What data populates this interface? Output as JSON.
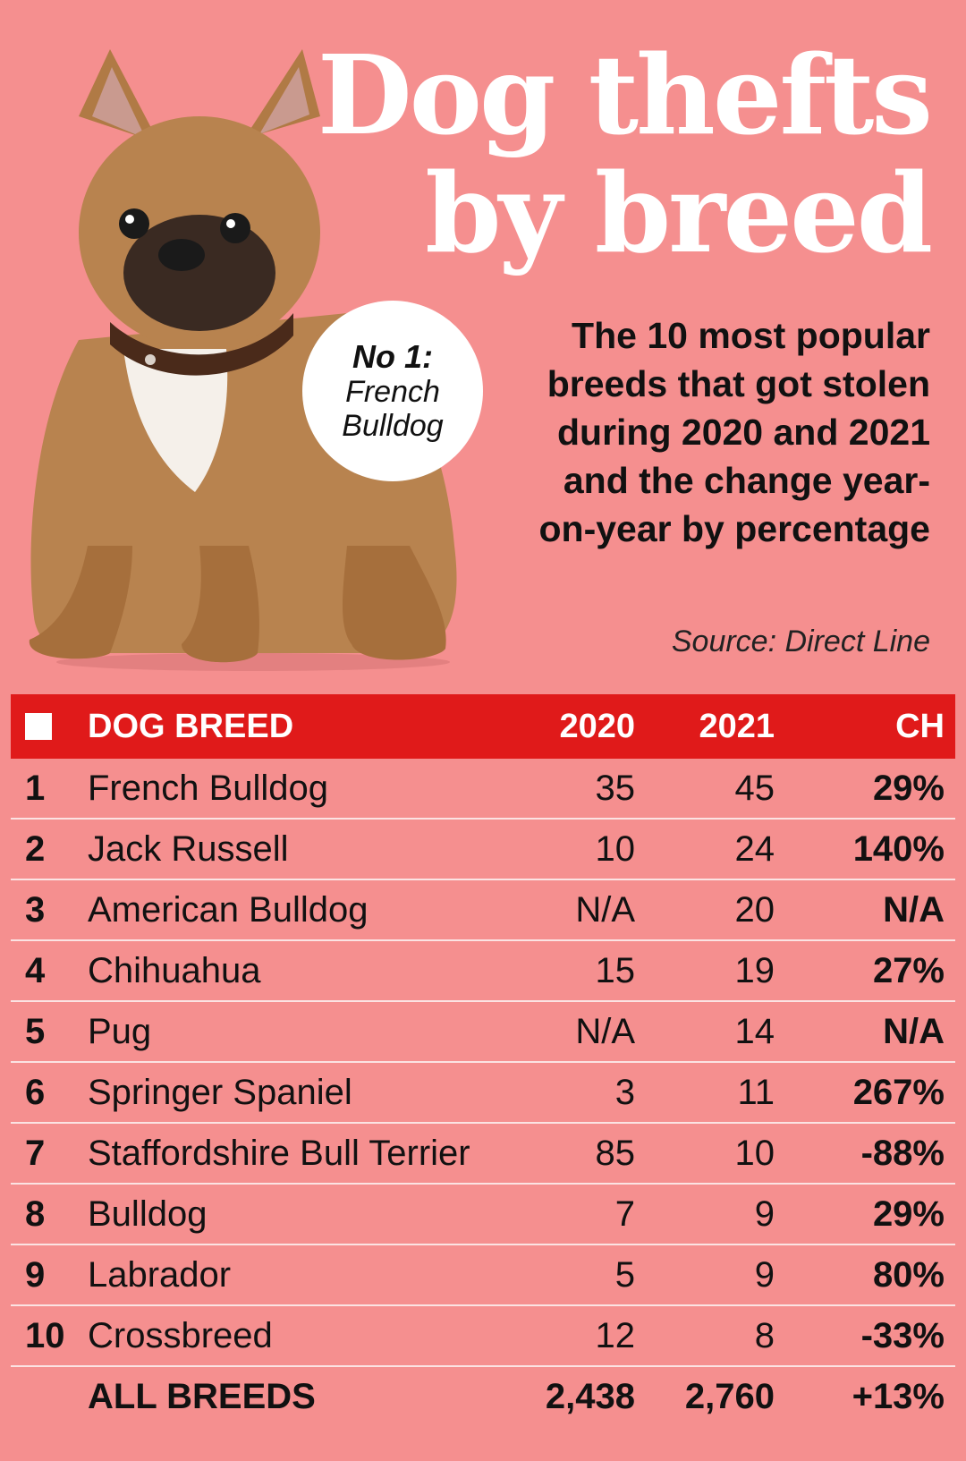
{
  "header": {
    "title_line1": "Dog thefts",
    "title_line2": "by breed",
    "subtitle": "The 10 most popular breeds that got stolen during 2020 and 2021 and the change year-on-year by percentage",
    "source": "Source: Direct Line"
  },
  "badge": {
    "line1": "No 1:",
    "line2": "French",
    "line3": "Bulldog"
  },
  "chart_data": {
    "type": "table",
    "columns": [
      "DOG BREED",
      "2020",
      "2021",
      "CH"
    ],
    "rows": [
      {
        "rank": "1",
        "breed": "French Bulldog",
        "y2020": "35",
        "y2021": "45",
        "change": "29%"
      },
      {
        "rank": "2",
        "breed": "Jack Russell",
        "y2020": "10",
        "y2021": "24",
        "change": "140%"
      },
      {
        "rank": "3",
        "breed": "American Bulldog",
        "y2020": "N/A",
        "y2021": "20",
        "change": "N/A"
      },
      {
        "rank": "4",
        "breed": "Chihuahua",
        "y2020": "15",
        "y2021": "19",
        "change": "27%"
      },
      {
        "rank": "5",
        "breed": "Pug",
        "y2020": "N/A",
        "y2021": "14",
        "change": "N/A"
      },
      {
        "rank": "6",
        "breed": "Springer Spaniel",
        "y2020": "3",
        "y2021": "11",
        "change": "267%"
      },
      {
        "rank": "7",
        "breed": "Staffordshire Bull Terrier",
        "y2020": "85",
        "y2021": "10",
        "change": "-88%"
      },
      {
        "rank": "8",
        "breed": "Bulldog",
        "y2020": "7",
        "y2021": "9",
        "change": "29%"
      },
      {
        "rank": "9",
        "breed": "Labrador",
        "y2020": "5",
        "y2021": "9",
        "change": "80%"
      },
      {
        "rank": "10",
        "breed": "Crossbreed",
        "y2020": "12",
        "y2021": "8",
        "change": "-33%"
      }
    ],
    "total": {
      "label": "ALL BREEDS",
      "y2020": "2,438",
      "y2021": "2,760",
      "change": "+13%"
    }
  },
  "colors": {
    "background": "#F58F8F",
    "header_bar": "#E01A1A",
    "title": "#FFFFFF"
  }
}
